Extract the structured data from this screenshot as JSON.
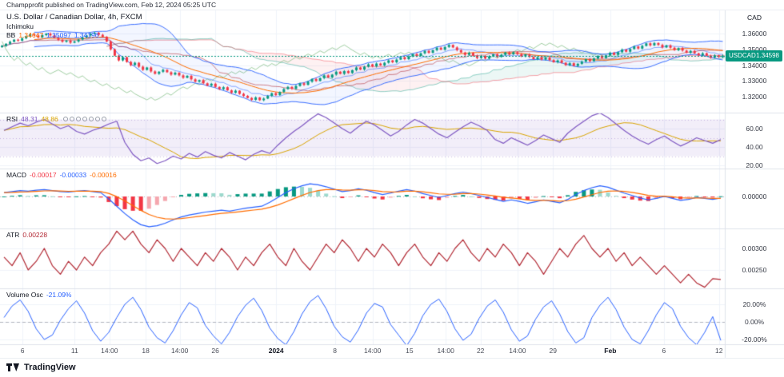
{
  "attribution": "Champprofit published on TradingView.com, Feb 12, 2024 05:25 UTC",
  "colors": {
    "up": "#089981",
    "down": "#F23645",
    "bb": "#2962FF",
    "bb_basis": "#FF6D00",
    "rsi": "#7E57C2",
    "rsi_ma": "#D9A400",
    "rsi_band_fill": "rgba(126,87,194,0.10)",
    "macd_line": "#2962FF",
    "macd_signal": "#FF6D00",
    "hist_up": "#089981",
    "hist_up_weak": "#9CD9CD",
    "hist_down": "#F23645",
    "hist_down_weak": "#F5A6AE",
    "atr": "#B22833",
    "vol_osc": "#2962FF",
    "badge": "#089981",
    "grid": "#f0f3fa",
    "separator": "#e0e3eb",
    "cloud_up": "rgba(8,153,129,0.08)",
    "cloud_down": "rgba(242,54,69,0.07)"
  },
  "main": {
    "legend_title": "U.S. Dollar / Canadian Dollar, 4h, FXCM",
    "legend_ichimoku": "Ichimoku",
    "legend_bb_label": "BB",
    "bb_values": [
      "1.34647",
      "1.35097",
      "1.34196"
    ],
    "currency_label": "CAD",
    "price_badge": {
      "symbol": "USDCAD",
      "price": "1.34598"
    },
    "price_ticks": [
      {
        "label": "1.36000",
        "value": 1.36
      },
      {
        "label": "1.35000",
        "value": 1.35
      },
      {
        "label": "1.34000",
        "value": 1.34
      },
      {
        "label": "1.33000",
        "value": 1.33
      },
      {
        "label": "1.32000",
        "value": 1.32
      }
    ]
  },
  "panes": {
    "rsi": {
      "label": "RSI",
      "value": "48.31",
      "ma_value": "48.86",
      "marker_count": 7,
      "ticks": [
        {
          "label": "60.00",
          "value": 60
        },
        {
          "label": "40.00",
          "value": 40
        },
        {
          "label": "20.00",
          "value": 20
        }
      ]
    },
    "macd": {
      "label": "MACD",
      "values": [
        "-0.00017",
        "-0.00033",
        "-0.00016"
      ],
      "ticks": [
        {
          "label": "0.00000",
          "value": 0
        }
      ]
    },
    "atr": {
      "label": "ATR",
      "value": "0.00228",
      "ticks": [
        {
          "label": "0.00300",
          "value": 0.003
        },
        {
          "label": "0.00250",
          "value": 0.0025
        }
      ]
    },
    "vol": {
      "label": "Volume Osc",
      "value": "-21.09%",
      "ticks": [
        {
          "label": "20.00%",
          "value": 20
        },
        {
          "label": "0.00%",
          "value": 0
        },
        {
          "label": "-20.00%",
          "value": -20
        }
      ]
    }
  },
  "time_axis": [
    {
      "label": "6",
      "pos": 0.031,
      "bold": false
    },
    {
      "label": "11",
      "pos": 0.103,
      "bold": false
    },
    {
      "label": "14:00",
      "pos": 0.151,
      "bold": false
    },
    {
      "label": "18",
      "pos": 0.201,
      "bold": false
    },
    {
      "label": "14:00",
      "pos": 0.248,
      "bold": false
    },
    {
      "label": "26",
      "pos": 0.297,
      "bold": false
    },
    {
      "label": "2024",
      "pos": 0.381,
      "bold": true
    },
    {
      "label": "8",
      "pos": 0.462,
      "bold": false
    },
    {
      "label": "14:00",
      "pos": 0.514,
      "bold": false
    },
    {
      "label": "15",
      "pos": 0.565,
      "bold": false
    },
    {
      "label": "14:00",
      "pos": 0.615,
      "bold": false
    },
    {
      "label": "22",
      "pos": 0.663,
      "bold": false
    },
    {
      "label": "14:00",
      "pos": 0.714,
      "bold": false
    },
    {
      "label": "29",
      "pos": 0.763,
      "bold": false
    },
    {
      "label": "Feb",
      "pos": 0.842,
      "bold": true
    },
    {
      "label": "6",
      "pos": 0.916,
      "bold": false
    },
    {
      "label": "12",
      "pos": 0.992,
      "bold": false
    }
  ],
  "footer": {
    "brand": "TradingView"
  },
  "chart_data": {
    "type": "candlestick",
    "title": "U.S. Dollar / Canadian Dollar, 4h, FXCM",
    "symbol": "USDCAD",
    "timeframe": "4h",
    "exchange": "FXCM",
    "last_price": 1.34598,
    "price_axis": {
      "min": 1.31,
      "max": 1.375,
      "ticks": [
        1.36,
        1.35,
        1.34,
        1.33,
        1.32
      ]
    },
    "x_axis_labels": [
      "6",
      "11",
      "14:00",
      "18",
      "14:00",
      "26",
      "2024",
      "8",
      "14:00",
      "15",
      "14:00",
      "22",
      "14:00",
      "29",
      "Feb",
      "6",
      "12"
    ],
    "closes": [
      1.3522,
      1.3535,
      1.3548,
      1.3561,
      1.3555,
      1.357,
      1.3583,
      1.3595,
      1.3588,
      1.3576,
      1.359,
      1.36,
      1.3588,
      1.3572,
      1.356,
      1.3548,
      1.3556,
      1.3542,
      1.355,
      1.3562,
      1.3575,
      1.3588,
      1.3598,
      1.3605,
      1.3592,
      1.358,
      1.355,
      1.35,
      1.346,
      1.343,
      1.345,
      1.342,
      1.34,
      1.3415,
      1.339,
      1.337,
      1.3385,
      1.336,
      1.3345,
      1.3358,
      1.337,
      1.3355,
      1.334,
      1.3352,
      1.3335,
      1.332,
      1.3332,
      1.331,
      1.3295,
      1.3305,
      1.3285,
      1.327,
      1.3282,
      1.3262,
      1.3248,
      1.326,
      1.324,
      1.3225,
      1.3238,
      1.3218,
      1.3205,
      1.3192,
      1.318,
      1.3195,
      1.3178,
      1.3188,
      1.3205,
      1.3222,
      1.321,
      1.323,
      1.3248,
      1.3262,
      1.325,
      1.3268,
      1.3285,
      1.3275,
      1.3295,
      1.3312,
      1.33,
      1.3318,
      1.3335,
      1.3322,
      1.334,
      1.3358,
      1.3345,
      1.3362,
      1.335,
      1.3368,
      1.3385,
      1.3372,
      1.339,
      1.3405,
      1.3392,
      1.341,
      1.3398,
      1.3415,
      1.343,
      1.3418,
      1.3435,
      1.345,
      1.3438,
      1.3455,
      1.347,
      1.3458,
      1.3475,
      1.349,
      1.3478,
      1.3495,
      1.351,
      1.3498,
      1.3515,
      1.3528,
      1.3512,
      1.3495,
      1.348,
      1.3465,
      1.3478,
      1.346,
      1.3445,
      1.3458,
      1.3442,
      1.3455,
      1.3468,
      1.3452,
      1.3465,
      1.348,
      1.3468,
      1.3482,
      1.347,
      1.3455,
      1.3468,
      1.3452,
      1.3438,
      1.345,
      1.3435,
      1.3448,
      1.3432,
      1.3418,
      1.343,
      1.3415,
      1.34,
      1.3412,
      1.3395,
      1.3408,
      1.3422,
      1.3438,
      1.3425,
      1.3442,
      1.3458,
      1.3445,
      1.3462,
      1.3478,
      1.3465,
      1.3482,
      1.3498,
      1.3485,
      1.3502,
      1.3518,
      1.3505,
      1.3522,
      1.3538,
      1.3525,
      1.354,
      1.3528,
      1.3512,
      1.3525,
      1.351,
      1.3495,
      1.3508,
      1.3492,
      1.3478,
      1.349,
      1.3475,
      1.3462,
      1.3475,
      1.346,
      1.3448,
      1.3462,
      1.3452,
      1.34598
    ],
    "indicators": {
      "bollinger": {
        "period": 20,
        "mult": 2
      },
      "ichimoku": {
        "conversion": 9,
        "base": 26,
        "span_b": 52,
        "displacement": 26
      },
      "rsi": {
        "current": 48.31,
        "values": [
          58,
          62,
          66,
          63,
          67,
          70,
          65,
          60,
          63,
          57,
          54,
          58,
          61,
          65,
          68,
          45,
          32,
          25,
          28,
          22,
          25,
          30,
          27,
          33,
          29,
          35,
          31,
          28,
          34,
          30,
          26,
          32,
          36,
          33,
          42,
          50,
          57,
          63,
          70,
          76,
          72,
          66,
          60,
          55,
          62,
          68,
          64,
          58,
          52,
          57,
          64,
          70,
          66,
          60,
          54,
          50,
          56,
          62,
          67,
          63,
          58,
          48,
          44,
          50,
          46,
          42,
          47,
          53,
          49,
          45,
          55,
          62,
          68,
          74,
          77,
          72,
          65,
          58,
          52,
          47,
          43,
          48,
          52,
          46,
          41,
          45,
          50,
          47,
          44,
          48
        ]
      },
      "macd": {
        "current": [
          -0.00017,
          -0.00033,
          -0.00016
        ],
        "values": [
          0.0008,
          0.001,
          0.0012,
          0.0011,
          0.0013,
          0.0014,
          0.0012,
          0.001,
          0.0009,
          0.0011,
          0.0012,
          0.001,
          0.0008,
          -0.0005,
          -0.002,
          -0.0035,
          -0.0048,
          -0.0058,
          -0.0062,
          -0.006,
          -0.0055,
          -0.0048,
          -0.0042,
          -0.0038,
          -0.0035,
          -0.0032,
          -0.003,
          -0.0028,
          -0.003,
          -0.0027,
          -0.0024,
          -0.0022,
          -0.002,
          -0.0012,
          -0.0002,
          0.0008,
          0.0016,
          0.0022,
          0.0026,
          0.0024,
          0.002,
          0.0015,
          0.001,
          0.0012,
          0.0016,
          0.0013,
          0.0008,
          0.0004,
          0.0007,
          0.0011,
          0.0014,
          0.0011,
          0.0006,
          0.0002,
          -0.0002,
          0.0002,
          0.0006,
          0.0009,
          0.0006,
          0.0002,
          -0.0002,
          -0.0006,
          -0.001,
          -0.0007,
          -0.001,
          -0.0014,
          -0.0011,
          -0.0007,
          -0.001,
          -0.0013,
          -0.0006,
          0.0004,
          0.0012,
          0.0018,
          0.0022,
          0.0019,
          0.0013,
          0.0007,
          0.0002,
          -0.0003,
          -0.0007,
          -0.0004,
          0.0,
          -0.0004,
          -0.0008,
          -0.0006,
          -0.0002,
          -0.0004,
          -0.0006,
          -0.00033
        ]
      },
      "atr": {
        "current": 0.00228,
        "values": [
          0.0028,
          0.0026,
          0.0029,
          0.0025,
          0.0027,
          0.003,
          0.0026,
          0.0024,
          0.0027,
          0.0025,
          0.0028,
          0.0026,
          0.0029,
          0.0031,
          0.0034,
          0.0032,
          0.0034,
          0.0031,
          0.0029,
          0.0032,
          0.003,
          0.0027,
          0.003,
          0.0028,
          0.0026,
          0.0029,
          0.0027,
          0.003,
          0.0028,
          0.0025,
          0.0028,
          0.0026,
          0.0029,
          0.0031,
          0.0028,
          0.0026,
          0.003,
          0.0027,
          0.0025,
          0.0028,
          0.0031,
          0.0029,
          0.0032,
          0.003,
          0.0027,
          0.003,
          0.0028,
          0.0031,
          0.0029,
          0.0026,
          0.0029,
          0.0031,
          0.0028,
          0.0026,
          0.0029,
          0.0027,
          0.003,
          0.0032,
          0.0029,
          0.0027,
          0.003,
          0.0028,
          0.0031,
          0.0029,
          0.0026,
          0.0029,
          0.0027,
          0.0024,
          0.0027,
          0.003,
          0.0028,
          0.0031,
          0.0033,
          0.003,
          0.0028,
          0.003,
          0.0027,
          0.0029,
          0.0026,
          0.0028,
          0.0026,
          0.0024,
          0.0026,
          0.0024,
          0.0022,
          0.0024,
          0.0022,
          0.0021,
          0.0023,
          0.00228
        ]
      },
      "volume_osc": {
        "current": -21.09,
        "values": [
          5,
          18,
          25,
          12,
          -8,
          -20,
          -15,
          2,
          15,
          24,
          10,
          -10,
          -22,
          -12,
          5,
          20,
          28,
          14,
          -6,
          -18,
          -24,
          -10,
          8,
          22,
          16,
          -4,
          -16,
          -25,
          -12,
          6,
          19,
          27,
          13,
          -7,
          -19,
          -26,
          -11,
          9,
          23,
          30,
          15,
          -5,
          -17,
          -23,
          -9,
          10,
          21,
          17,
          -3,
          -15,
          -27,
          -13,
          7,
          20,
          26,
          12,
          -8,
          -21,
          -14,
          4,
          18,
          25,
          11,
          -9,
          -22,
          -16,
          3,
          17,
          24,
          9,
          -11,
          -24,
          -18,
          5,
          19,
          28,
          14,
          -6,
          -20,
          -25,
          -10,
          8,
          22,
          15,
          -5,
          -18,
          -26,
          -12,
          6,
          -21.09
        ]
      }
    }
  }
}
